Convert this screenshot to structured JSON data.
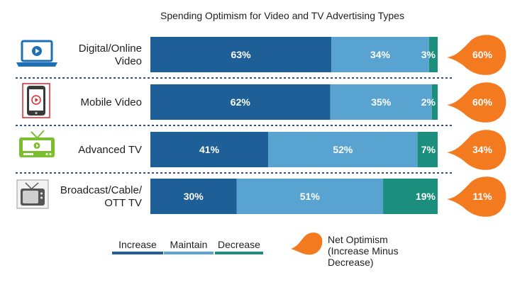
{
  "chart_data": {
    "type": "bar",
    "orientation": "horizontal",
    "stacked": true,
    "title": "Spending Optimism for Video and TV Advertising Types",
    "categories": [
      [
        "Digital/Online",
        "Video"
      ],
      [
        "Mobile Video"
      ],
      [
        "Advanced TV"
      ],
      [
        "Broadcast/Cable/",
        "OTT TV"
      ]
    ],
    "category_icons": [
      "laptop-video-icon",
      "mobile-video-icon",
      "advanced-tv-icon",
      "broadcast-tv-icon"
    ],
    "series": [
      {
        "name": "Increase",
        "color": "#1f5f97",
        "values": [
          63,
          62,
          41,
          30
        ]
      },
      {
        "name": "Maintain",
        "color": "#58a3cf",
        "values": [
          34,
          35,
          52,
          51
        ]
      },
      {
        "name": "Decrease",
        "color": "#1b8e7e",
        "values": [
          3,
          2,
          7,
          19
        ]
      }
    ],
    "value_labels": [
      [
        "63%",
        "34%",
        "3%"
      ],
      [
        "62%",
        "35%",
        "2%"
      ],
      [
        "41%",
        "52%",
        "7%"
      ],
      [
        "30%",
        "51%",
        "19%"
      ]
    ],
    "net_optimism": {
      "color": "#f47a20",
      "values": [
        60,
        60,
        34,
        11
      ],
      "labels": [
        "60%",
        "60%",
        "34%",
        "11%"
      ],
      "legend_label": [
        "Net Optimism",
        "(Increase Minus",
        "Decrease)"
      ]
    },
    "legend_position": "bottom",
    "grid": false
  }
}
